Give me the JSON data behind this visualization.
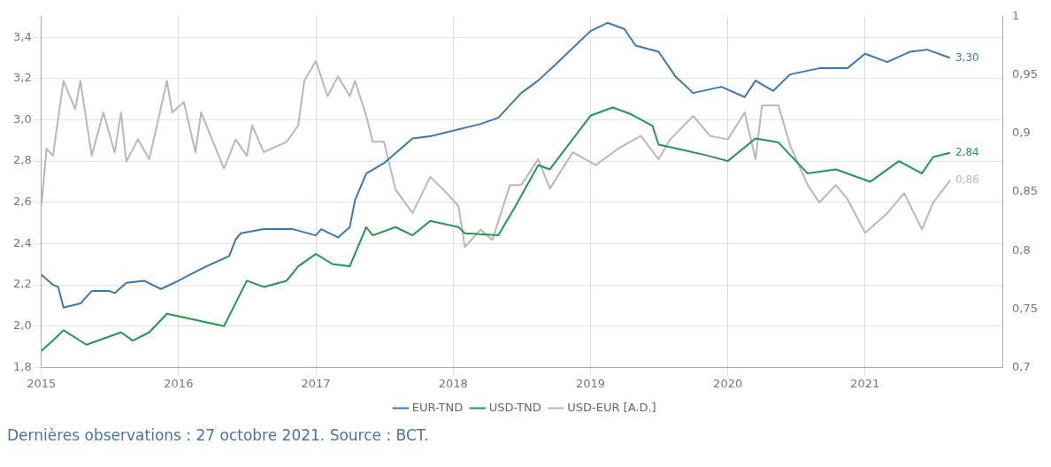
{
  "chart_data": {
    "type": "line",
    "legend": "bottom",
    "grid": true,
    "marker": "none",
    "line_style": "solid",
    "xlim": [
      "2015-01-01",
      "2022-01-01"
    ],
    "xticks": [
      {
        "value": "2015-01-01",
        "label": "2015"
      },
      {
        "value": "2016-01-01",
        "label": "2016"
      },
      {
        "value": "2017-01-01",
        "label": "2017"
      },
      {
        "value": "2018-01-01",
        "label": "2018"
      },
      {
        "value": "2019-01-01",
        "label": "2019"
      },
      {
        "value": "2020-01-01",
        "label": "2020"
      },
      {
        "value": "2021-01-01",
        "label": "2021"
      }
    ],
    "ylim": [
      1.8,
      3.5
    ],
    "yticks": [
      {
        "value": 1.8,
        "label": "1,8"
      },
      {
        "value": 2.0,
        "label": "2,0"
      },
      {
        "value": 2.2,
        "label": "2,2"
      },
      {
        "value": 2.4,
        "label": "2,4"
      },
      {
        "value": 2.6,
        "label": "2,6"
      },
      {
        "value": 2.8,
        "label": "2,8"
      },
      {
        "value": 3.0,
        "label": "3,0"
      },
      {
        "value": 3.2,
        "label": "3,2"
      },
      {
        "value": 3.4,
        "label": "3,4"
      }
    ],
    "y2lim": [
      0.7,
      1
    ],
    "y2ticks": [
      {
        "value": 0.7,
        "label": "0,7"
      },
      {
        "value": 0.75,
        "label": "0,75"
      },
      {
        "value": 0.8,
        "label": "0,8"
      },
      {
        "value": 0.85,
        "label": "0,85"
      },
      {
        "value": 0.9,
        "label": "0,9"
      },
      {
        "value": 0.95,
        "label": "0,95"
      },
      1
    ],
    "annotations": [
      "Dernières observations : 27 octobre 2021. Source : BCT."
    ],
    "series": [
      {
        "name": "EUR-TND",
        "color": "#3a78b5",
        "x": [
          "2015-01-01",
          "2015-02-01",
          "2015-02-15",
          "2015-03-01",
          "2015-04-15",
          "2015-05-15",
          "2015-07-01",
          "2015-07-15",
          "2015-08-15",
          "2015-10-01",
          "2015-11-15",
          "2016-01-01",
          "2016-02-01",
          "2016-03-15",
          "2016-05-15",
          "2016-06-01",
          "2016-06-15",
          "2016-08-15",
          "2016-11-01",
          "2017-01-01",
          "2017-01-15",
          "2017-03-01",
          "2017-04-01",
          "2017-04-15",
          "2017-05-15",
          "2017-07-01",
          "2017-09-15",
          "2017-11-01",
          "2017-12-15",
          "2018-03-15",
          "2018-05-01",
          "2018-07-01",
          "2018-08-15",
          "2018-10-01",
          "2019-01-01",
          "2019-02-15",
          "2019-04-01",
          "2019-05-01",
          "2019-07-01",
          "2019-08-15",
          "2019-10-01",
          "2019-12-15",
          "2020-02-15",
          "2020-03-15",
          "2020-05-01",
          "2020-06-15",
          "2020-09-01",
          "2020-11-15",
          "2021-01-01",
          "2021-03-01",
          "2021-05-01",
          "2021-06-15",
          "2021-08-15"
        ],
        "values": [
          2.25,
          2.2,
          2.19,
          2.09,
          2.11,
          2.17,
          2.17,
          2.16,
          2.21,
          2.22,
          2.18,
          2.22,
          2.25,
          2.29,
          2.34,
          2.42,
          2.45,
          2.47,
          2.47,
          2.44,
          2.47,
          2.43,
          2.48,
          2.61,
          2.74,
          2.79,
          2.91,
          2.92,
          2.94,
          2.98,
          3.01,
          3.13,
          3.19,
          3.27,
          3.43,
          3.47,
          3.44,
          3.36,
          3.33,
          3.21,
          3.13,
          3.16,
          3.11,
          3.19,
          3.14,
          3.22,
          3.25,
          3.25,
          3.32,
          3.28,
          3.33,
          3.34,
          3.3
        ],
        "value_labels": [
          null,
          null,
          null,
          null,
          null,
          null,
          null,
          null,
          null,
          null,
          null,
          null,
          null,
          null,
          null,
          null,
          null,
          null,
          null,
          null,
          null,
          null,
          null,
          null,
          null,
          null,
          null,
          null,
          null,
          null,
          null,
          null,
          null,
          null,
          null,
          null,
          null,
          null,
          null,
          null,
          null,
          null,
          null,
          null,
          null,
          null,
          null,
          null,
          null,
          null,
          null,
          null,
          "3,30"
        ]
      },
      {
        "name": "USD-TND",
        "color": "#1f9a4c",
        "x": [
          "2015-01-01",
          "2015-02-01",
          "2015-03-01",
          "2015-05-01",
          "2015-08-01",
          "2015-09-01",
          "2015-10-15",
          "2015-12-01",
          "2016-02-15",
          "2016-05-01",
          "2016-07-01",
          "2016-08-15",
          "2016-10-15",
          "2016-11-15",
          "2017-01-01",
          "2017-02-15",
          "2017-04-01",
          "2017-05-15",
          "2017-06-01",
          "2017-08-01",
          "2017-09-15",
          "2017-11-01",
          "2018-01-15",
          "2018-02-01",
          "2018-05-01",
          "2018-06-15",
          "2018-08-15",
          "2018-09-15",
          "2019-01-01",
          "2019-03-01",
          "2019-04-15",
          "2019-06-15",
          "2019-07-01",
          "2019-11-01",
          "2020-01-01",
          "2020-03-15",
          "2020-05-15",
          "2020-08-01",
          "2020-10-15",
          "2021-01-15",
          "2021-04-01",
          "2021-06-01",
          "2021-07-01",
          "2021-08-15"
        ],
        "values": [
          1.88,
          1.93,
          1.98,
          1.91,
          1.97,
          1.93,
          1.97,
          2.06,
          2.03,
          2.0,
          2.22,
          2.19,
          2.22,
          2.29,
          2.35,
          2.3,
          2.29,
          2.48,
          2.44,
          2.48,
          2.44,
          2.51,
          2.48,
          2.45,
          2.44,
          2.58,
          2.78,
          2.76,
          3.02,
          3.06,
          3.03,
          2.97,
          2.88,
          2.83,
          2.8,
          2.91,
          2.89,
          2.74,
          2.76,
          2.7,
          2.8,
          2.74,
          2.82,
          2.84
        ],
        "value_labels": [
          null,
          null,
          null,
          null,
          null,
          null,
          null,
          null,
          null,
          null,
          null,
          null,
          null,
          null,
          null,
          null,
          null,
          null,
          null,
          null,
          null,
          null,
          null,
          null,
          null,
          null,
          null,
          null,
          null,
          null,
          null,
          null,
          null,
          null,
          null,
          null,
          null,
          null,
          null,
          null,
          null,
          null,
          null,
          "2,84"
        ]
      },
      {
        "name": "USD-EUR [A.D.]",
        "color": "#b8b8b8",
        "axis": "y2",
        "x": [
          "2015-01-01",
          "2015-01-15",
          "2015-02-01",
          "2015-03-01",
          "2015-04-01",
          "2015-04-15",
          "2015-05-15",
          "2015-06-15",
          "2015-07-15",
          "2015-08-01",
          "2015-08-15",
          "2015-09-15",
          "2015-10-15",
          "2015-12-01",
          "2015-12-15",
          "2016-01-15",
          "2016-02-15",
          "2016-03-01",
          "2016-05-01",
          "2016-06-01",
          "2016-07-01",
          "2016-07-15",
          "2016-08-15",
          "2016-10-15",
          "2016-11-15",
          "2016-12-01",
          "2017-01-01",
          "2017-02-01",
          "2017-03-01",
          "2017-04-01",
          "2017-04-15",
          "2017-05-15",
          "2017-06-01",
          "2017-07-01",
          "2017-08-01",
          "2017-09-15",
          "2017-11-01",
          "2017-12-15",
          "2018-01-15",
          "2018-02-01",
          "2018-03-15",
          "2018-04-15",
          "2018-06-01",
          "2018-07-01",
          "2018-08-15",
          "2018-09-15",
          "2018-11-15",
          "2019-01-15",
          "2019-03-15",
          "2019-05-15",
          "2019-07-01",
          "2019-08-01",
          "2019-10-01",
          "2019-11-15",
          "2020-01-01",
          "2020-02-15",
          "2020-03-15",
          "2020-04-01",
          "2020-05-15",
          "2020-06-15",
          "2020-08-01",
          "2020-09-01",
          "2020-10-15",
          "2020-11-15",
          "2021-01-01",
          "2021-03-01",
          "2021-04-15",
          "2021-06-01",
          "2021-07-01",
          "2021-08-15"
        ],
        "values": [
          0.838,
          0.887,
          0.881,
          0.945,
          0.921,
          0.945,
          0.881,
          0.918,
          0.884,
          0.918,
          0.876,
          0.895,
          0.878,
          0.945,
          0.918,
          0.927,
          0.884,
          0.918,
          0.87,
          0.895,
          0.881,
          0.907,
          0.884,
          0.893,
          0.907,
          0.945,
          0.962,
          0.932,
          0.949,
          0.932,
          0.945,
          0.915,
          0.893,
          0.893,
          0.852,
          0.832,
          0.863,
          0.849,
          0.838,
          0.803,
          0.818,
          0.809,
          0.856,
          0.856,
          0.878,
          0.853,
          0.884,
          0.873,
          0.887,
          0.898,
          0.878,
          0.895,
          0.915,
          0.898,
          0.895,
          0.918,
          0.878,
          0.924,
          0.924,
          0.89,
          0.856,
          0.841,
          0.856,
          0.844,
          0.815,
          0.832,
          0.849,
          0.818,
          0.841,
          0.86
        ],
        "value_labels": [
          null,
          null,
          null,
          null,
          null,
          null,
          null,
          null,
          null,
          null,
          null,
          null,
          null,
          null,
          null,
          null,
          null,
          null,
          null,
          null,
          null,
          null,
          null,
          null,
          null,
          null,
          null,
          null,
          null,
          null,
          null,
          null,
          null,
          null,
          null,
          null,
          null,
          null,
          null,
          null,
          null,
          null,
          null,
          null,
          null,
          null,
          null,
          null,
          null,
          null,
          null,
          null,
          null,
          null,
          null,
          null,
          null,
          null,
          null,
          null,
          null,
          null,
          null,
          null,
          null,
          null,
          null,
          null,
          null,
          "0,86"
        ]
      }
    ]
  }
}
